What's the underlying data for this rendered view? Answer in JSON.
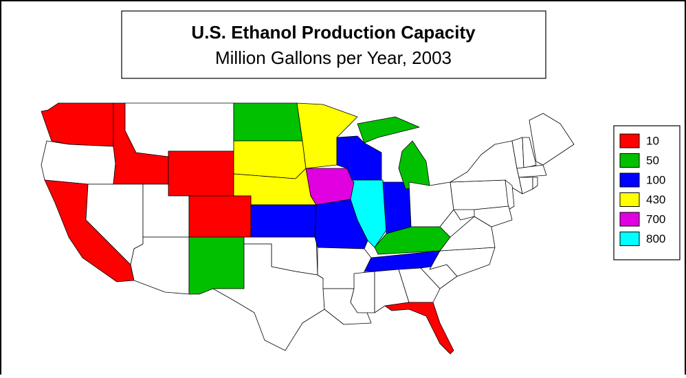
{
  "title": "U.S. Ethanol Production Capacity",
  "subtitle": "Million Gallons per Year, 2003",
  "legend": {
    "items": [
      {
        "value": 10,
        "color": "#ff0000"
      },
      {
        "value": 50,
        "color": "#00c000"
      },
      {
        "value": 100,
        "color": "#0000ff"
      },
      {
        "value": 430,
        "color": "#ffff00"
      },
      {
        "value": 700,
        "color": "#e000e0"
      },
      {
        "value": 800,
        "color": "#00ffff"
      }
    ]
  }
}
